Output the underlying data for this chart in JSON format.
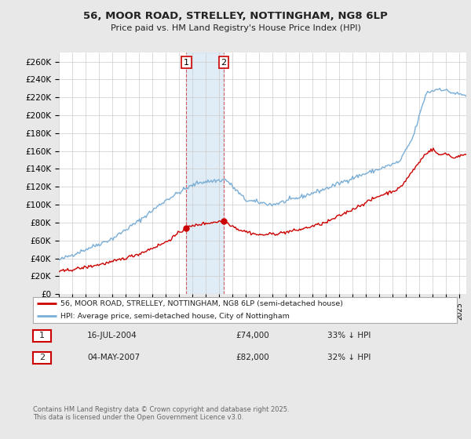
{
  "title": "56, MOOR ROAD, STRELLEY, NOTTINGHAM, NG8 6LP",
  "subtitle": "Price paid vs. HM Land Registry's House Price Index (HPI)",
  "ylim": [
    0,
    270000
  ],
  "yticks": [
    0,
    20000,
    40000,
    60000,
    80000,
    100000,
    120000,
    140000,
    160000,
    180000,
    200000,
    220000,
    240000,
    260000
  ],
  "line1_color": "#cc0000",
  "line2_color": "#7aaed6",
  "fig_bg_color": "#e8e8e8",
  "plot_bg_color": "#ffffff",
  "grid_color": "#cccccc",
  "sale1_date_x": 2004.54,
  "sale2_date_x": 2007.34,
  "sale1_price": 74000,
  "sale2_price": 82000,
  "legend1_label": "56, MOOR ROAD, STRELLEY, NOTTINGHAM, NG8 6LP (semi-detached house)",
  "legend2_label": "HPI: Average price, semi-detached house, City of Nottingham",
  "table_rows": [
    [
      "1",
      "16-JUL-2004",
      "£74,000",
      "33% ↓ HPI"
    ],
    [
      "2",
      "04-MAY-2007",
      "£82,000",
      "32% ↓ HPI"
    ]
  ],
  "copyright_text": "Contains HM Land Registry data © Crown copyright and database right 2025.\nThis data is licensed under the Open Government Licence v3.0.",
  "xmin": 1995,
  "xmax": 2025.5,
  "hpi_anchors": [
    [
      1995.0,
      38000
    ],
    [
      1997.0,
      50000
    ],
    [
      1999.0,
      62000
    ],
    [
      2001.0,
      82000
    ],
    [
      2003.0,
      105000
    ],
    [
      2004.5,
      118000
    ],
    [
      2005.5,
      125000
    ],
    [
      2007.5,
      128000
    ],
    [
      2009.0,
      105000
    ],
    [
      2011.0,
      100000
    ],
    [
      2013.0,
      108000
    ],
    [
      2015.0,
      118000
    ],
    [
      2017.0,
      130000
    ],
    [
      2019.0,
      140000
    ],
    [
      2020.5,
      148000
    ],
    [
      2021.5,
      175000
    ],
    [
      2022.5,
      225000
    ],
    [
      2023.5,
      230000
    ],
    [
      2024.5,
      225000
    ],
    [
      2025.5,
      222000
    ]
  ],
  "price_anchors": [
    [
      1995.0,
      25000
    ],
    [
      1997.0,
      30000
    ],
    [
      1999.0,
      36000
    ],
    [
      2001.0,
      45000
    ],
    [
      2003.0,
      58000
    ],
    [
      2004.54,
      74000
    ],
    [
      2005.5,
      78000
    ],
    [
      2007.34,
      82000
    ],
    [
      2008.5,
      72000
    ],
    [
      2010.0,
      66000
    ],
    [
      2011.5,
      68000
    ],
    [
      2013.0,
      72000
    ],
    [
      2015.0,
      80000
    ],
    [
      2017.0,
      95000
    ],
    [
      2019.0,
      110000
    ],
    [
      2020.5,
      118000
    ],
    [
      2021.5,
      138000
    ],
    [
      2022.5,
      158000
    ],
    [
      2023.0,
      162000
    ],
    [
      2023.5,
      155000
    ],
    [
      2024.0,
      158000
    ],
    [
      2024.5,
      152000
    ],
    [
      2025.0,
      155000
    ],
    [
      2025.5,
      155000
    ]
  ]
}
